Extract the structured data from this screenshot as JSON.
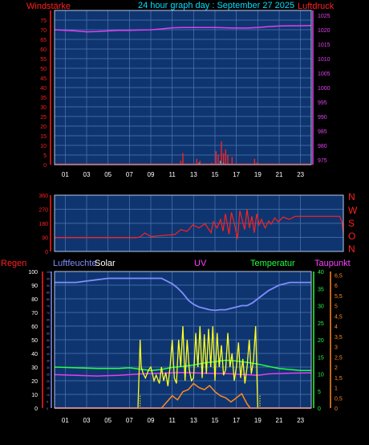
{
  "colors": {
    "background": "#000000",
    "plot_bg": "#0f3570",
    "grid": "#4f78b3",
    "red": "#ff2020",
    "magenta": "#e040f0",
    "cyan": "#00e0ff",
    "blue_line": "#7f8fff",
    "yellow": "#ffff20",
    "orange": "#ff8a1f",
    "green": "#20ff40",
    "uv_pink": "#ff40ff"
  },
  "header": {
    "left_label": "Windstärke",
    "title": "24 hour graph day : September 27 2025",
    "right_label": "Luftdruck"
  },
  "middle": {
    "compass": [
      "N",
      "W",
      "S",
      "O",
      "N"
    ]
  },
  "bottom": {
    "labels": {
      "regen": "Regen",
      "luftfeuchte": "Luftfeuchte",
      "solar": "Solar",
      "uv": "UV",
      "temperatur": "Temperatur",
      "taupunkt": "Taupunkt"
    }
  },
  "chart_data": [
    {
      "type": "line",
      "panel": "wind-pressure",
      "x_ticks": [
        "01",
        "03",
        "05",
        "07",
        "09",
        "11",
        "13",
        "15",
        "17",
        "19",
        "21",
        "23"
      ],
      "y_left_ticks": [
        "0",
        "5",
        "10",
        "15",
        "20",
        "25",
        "30",
        "35",
        "40",
        "45",
        "50",
        "55",
        "60",
        "65",
        "70",
        "75"
      ],
      "y_left_range": [
        0,
        80
      ],
      "y_right_ticks": [
        "975",
        "980",
        "985",
        "990",
        "995",
        "1000",
        "1005",
        "1010",
        "1015",
        "1020",
        "1025"
      ],
      "y_right_range": [
        973.3,
        1026.7
      ],
      "grid": true,
      "series": [
        {
          "axis": "right",
          "x": [
            0,
            1,
            2,
            3,
            4,
            5,
            6,
            7,
            8,
            9,
            10,
            11,
            12,
            13,
            14,
            15,
            16,
            17,
            18,
            19,
            20,
            21,
            22,
            23,
            24
          ],
          "values": [
            1020.0,
            1019.8,
            1019.6,
            1019.3,
            1019.4,
            1019.6,
            1019.8,
            1019.8,
            1019.9,
            1020.0,
            1020.3,
            1020.7,
            1020.8,
            1020.8,
            1020.8,
            1020.8,
            1020.7,
            1020.6,
            1020.6,
            1020.8,
            1021.1,
            1021.3,
            1021.4,
            1021.4,
            1021.5
          ]
        },
        {
          "axis": "left",
          "x": [
            11.8,
            12.0,
            13.3,
            13.6,
            14.7,
            15.1,
            15.3,
            15.6,
            15.8,
            16.0,
            16.2,
            16.6,
            18.7,
            18.9
          ],
          "values": [
            2,
            6,
            3,
            2,
            1,
            7,
            5,
            12,
            6,
            8,
            5,
            4,
            3,
            1
          ]
        },
        {
          "axis": "left",
          "x": [
            13.5,
            15.5,
            15.8
          ],
          "values": [
            1,
            2,
            1
          ]
        }
      ]
    },
    {
      "type": "line",
      "panel": "wind-direction",
      "x_ticks": [
        "01",
        "03",
        "05",
        "07",
        "09",
        "11",
        "13",
        "15",
        "17",
        "19",
        "21",
        "23"
      ],
      "y_ticks": [
        "0",
        "90",
        "180",
        "270",
        "360"
      ],
      "y_range": [
        0,
        360
      ],
      "grid": true,
      "series": [
        {
          "x": [
            0,
            6.8,
            7.1,
            7.5,
            8,
            9,
            10,
            10.5,
            11,
            11.5,
            12,
            12.5,
            13,
            13.2,
            13.5,
            13.8,
            14,
            14.2,
            14.5,
            14.7,
            15,
            15.2,
            15.4,
            15.6,
            15.8,
            16,
            16.2,
            16.4,
            16.6,
            16.8,
            17,
            17.2,
            17.5,
            17.8,
            18,
            18.3,
            18.6,
            19,
            19.5,
            20,
            21,
            22,
            23,
            23.5,
            23.7,
            23.9,
            24
          ],
          "values": [
            88,
            88,
            92,
            118,
            95,
            102,
            108,
            140,
            128,
            170,
            150,
            178,
            120,
            190,
            150,
            205,
            130,
            240,
            110,
            250,
            160,
            80,
            260,
            200,
            140,
            270,
            150,
            225,
            120,
            240,
            170,
            205,
            150,
            195,
            175,
            215,
            190,
            220,
            205,
            225,
            225,
            225,
            225,
            225,
            225,
            185,
            110
          ]
        }
      ]
    },
    {
      "type": "line",
      "panel": "rain-humidity-solar-temperature",
      "x_ticks": [
        "01",
        "03",
        "05",
        "07",
        "09",
        "11",
        "13",
        "15",
        "17",
        "19",
        "21",
        "23"
      ],
      "y_left_ticks": [
        "0",
        "5",
        "10",
        "15",
        "20",
        "25",
        "30",
        "35",
        "40",
        "45",
        "50",
        "55",
        "60",
        "65",
        "70",
        "75",
        "80",
        "85",
        "90",
        "95",
        "100"
      ],
      "y_left_range": [
        0,
        100
      ],
      "y_temp_ticks": [
        "0",
        "5",
        "10",
        "15",
        "20",
        "25",
        "30",
        "35",
        "40"
      ],
      "y_temp_range": [
        0,
        40
      ],
      "y_uv_ticks": [
        "0",
        "0,5",
        "1",
        "1,5",
        "2",
        "2,5",
        "3",
        "3,5",
        "4",
        "4,5",
        "5",
        "5,5",
        "6",
        "6,5"
      ],
      "y_uv_range": [
        0,
        6.667
      ],
      "grid": true,
      "series": [
        {
          "name": "Luftfeuchte",
          "x": [
            0,
            1,
            2,
            3,
            4,
            5,
            6,
            7,
            8,
            9,
            10,
            11,
            11.5,
            12,
            12.5,
            13,
            13.5,
            14,
            14.5,
            15,
            15.5,
            16,
            16.5,
            17,
            17.5,
            18,
            18.5,
            19,
            20,
            21,
            22,
            23,
            24
          ],
          "values": [
            92,
            92,
            92,
            93,
            94,
            95,
            95,
            95,
            95,
            95,
            95,
            91,
            88,
            84,
            79,
            76,
            74,
            73,
            72,
            71.5,
            72,
            72,
            73,
            74,
            75,
            75,
            77,
            80,
            86,
            90,
            92,
            92,
            92
          ]
        },
        {
          "name": "Temperatur",
          "x": [
            0,
            2,
            4,
            6,
            7,
            8,
            9,
            10,
            11,
            12,
            13,
            14,
            15,
            16,
            17,
            18,
            19,
            20,
            21,
            22,
            23,
            24
          ],
          "values": [
            12,
            11.8,
            11.6,
            11.6,
            11.8,
            11.4,
            11,
            11.3,
            11.9,
            12.2,
            12.6,
            13.2,
            13.6,
            14,
            13.8,
            13.4,
            12.9,
            12.2,
            11.6,
            11.3,
            11,
            11
          ]
        },
        {
          "name": "Taupunkt",
          "x": [
            0,
            2,
            4,
            6,
            8,
            10,
            12,
            14,
            16,
            18,
            19,
            20,
            22,
            24
          ],
          "values": [
            9.8,
            9.6,
            9.4,
            9.6,
            10,
            10.2,
            10.4,
            10.2,
            10.1,
            9.8,
            9.6,
            10,
            10.2,
            10.3
          ]
        },
        {
          "name": "Solar",
          "x": [
            0,
            7.8,
            8.0,
            8.1,
            8.3,
            8.5,
            8.8,
            9,
            9.3,
            9.5,
            9.8,
            10,
            10.2,
            10.4,
            10.6,
            10.8,
            11,
            11.2,
            11.4,
            11.6,
            11.8,
            12,
            12.2,
            12.4,
            12.6,
            12.8,
            13,
            13.2,
            13.4,
            13.6,
            13.8,
            14,
            14.2,
            14.4,
            14.6,
            14.8,
            15,
            15.2,
            15.4,
            15.6,
            15.8,
            16,
            16.2,
            16.4,
            16.6,
            16.8,
            17,
            17.2,
            17.4,
            17.6,
            17.8,
            18,
            18.2,
            18.4,
            18.6,
            18.8,
            19,
            19.1,
            19.3,
            24
          ],
          "values": [
            0,
            0,
            50,
            30,
            25,
            22,
            28,
            30,
            20,
            24,
            18,
            30,
            20,
            26,
            16,
            30,
            50,
            22,
            18,
            50,
            30,
            60,
            20,
            50,
            28,
            20,
            22,
            55,
            30,
            60,
            22,
            54,
            25,
            58,
            30,
            60,
            20,
            55,
            30,
            46,
            24,
            28,
            55,
            30,
            40,
            20,
            30,
            48,
            22,
            36,
            18,
            30,
            50,
            25,
            35,
            60,
            0,
            0,
            0,
            0
          ]
        },
        {
          "name": "UV",
          "x": [
            0,
            10,
            10.5,
            11,
            11.5,
            12,
            12.5,
            13,
            13.5,
            14,
            14.5,
            15,
            15.5,
            16,
            16.5,
            17,
            17.5,
            18,
            18.3,
            24
          ],
          "values": [
            0,
            0,
            0.3,
            0.6,
            0.4,
            0.8,
            0.9,
            1.2,
            1.0,
            0.9,
            1.1,
            0.8,
            0.6,
            0.5,
            0.3,
            0.5,
            0.7,
            0.2,
            0,
            0
          ]
        },
        {
          "name": "Regen",
          "x": [
            0,
            24
          ],
          "values": [
            0,
            0
          ]
        }
      ]
    }
  ]
}
